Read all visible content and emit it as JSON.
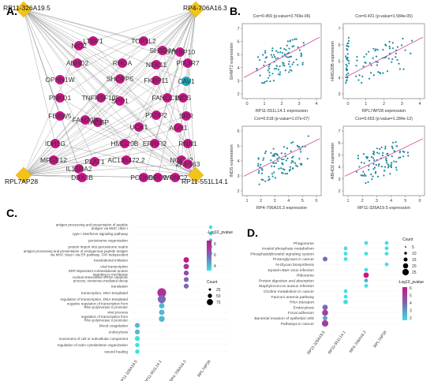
{
  "panels": {
    "a": "A.",
    "b": "B.",
    "c": "C.",
    "d": "D."
  },
  "network": {
    "hubs": [
      {
        "id": "h1",
        "label": "RP11-326A19.5"
      },
      {
        "id": "h2",
        "label": "RP4-706A16.3"
      },
      {
        "id": "h3",
        "label": "RPL7AP28"
      },
      {
        "id": "h4",
        "label": "RP11-551L14.1"
      }
    ],
    "genes": [
      "NID2",
      "LTBP1",
      "TOP1L2",
      "SH3D4A",
      "GTPBP10",
      "ABHD2",
      "RHOA",
      "NEK11",
      "PIK3R7",
      "OPHN1W",
      "SHOPP5",
      "FKBP11",
      "CAV1",
      "PNKD1",
      "TNFRSF10D",
      "SPP1",
      "FANCC1B",
      "INDS",
      "FBXW5",
      "TAOBP",
      "SRR",
      "FAM20B",
      "PXDP2",
      "UCK1",
      "AGH1",
      "IDH1G",
      "HMG20B",
      "ERRFI2",
      "RNN1",
      "MFGE12",
      "IL15RA2",
      "AC136472.2",
      "PLAT1",
      "NOCK2",
      "DBX3B",
      "PCDH10",
      "WRNC2",
      "DRD2",
      "ZNF563"
    ],
    "hub_color": "#f2c318",
    "gene_color": "#c71585",
    "teal_color": "#1aa7b5"
  },
  "scatter": [
    {
      "title": "Cor=0.459 (p-value=3.769e-06)",
      "xlabel": "RP11-551L14.1 expression",
      "ylabel": "EHMT2 expression",
      "xticks": [
        "0",
        "1",
        "2",
        "3",
        "4"
      ],
      "yticks": [
        "2",
        "3",
        "4",
        "5",
        "6",
        "7"
      ]
    },
    {
      "title": "Cor=0.431 (p-value=1.584e-05)",
      "xlabel": "RPL7AP28 expression",
      "ylabel": "HMG20B expression",
      "xticks": [
        "0",
        "1",
        "2",
        "3",
        "4"
      ],
      "yticks": [
        "3",
        "4",
        "5",
        "6",
        "7"
      ]
    },
    {
      "title": "Cor=0.518 (p-value=1.07e-07)",
      "xlabel": "RP4-706A16.3 expression",
      "ylabel": "INDS expression",
      "xticks": [
        "1",
        "2",
        "3",
        "4",
        "5",
        "6"
      ],
      "yticks": [
        "2",
        "3",
        "4",
        "5",
        "6"
      ]
    },
    {
      "title": "Cor=0.653 (p-value=1.284e-12)",
      "xlabel": "RP11-326A19.5 expression",
      "ylabel": "ABHD2 expression",
      "xticks": [
        "1",
        "2",
        "3",
        "4",
        "5",
        "6"
      ],
      "yticks": [
        "2",
        "3",
        "4",
        "5",
        "6",
        "7"
      ]
    }
  ],
  "go_plot": {
    "terms": [
      "antigen processing and presentation of peptide antigen via MHC class I",
      "type I interferon signaling pathway",
      "peroxisome organization",
      "protein import into peroxisome matrix",
      "antigen processing and presentation of endogenous peptide antigen via MHC class I via ER pathway, TAP-independent",
      "translational initiation",
      "viral transcription",
      "SRP-dependent cotranslational protein targeting to membrane",
      "nuclear-transcribed mRNA catabolic process, nonsense-mediated decay",
      "translation",
      "transcription, DNA-templated",
      "regulation of transcription, DNA-templated",
      "negative regulation of transcription from RNA polymerase II promoter",
      "viral process",
      "regulation of transcription from RNA polymerase II promoter",
      "blood coagulation",
      "endocytosis",
      "movement of cell or subcellular component",
      "regulation of actin cytoskeleton organization",
      "wound healing"
    ],
    "columns": [
      "RP11-326A19.5",
      "RP11-551L14.1",
      "RP4-706A16.3",
      "RPL7AP28"
    ],
    "legend_color_title": "-Log10_pvalue",
    "legend_color_ticks": [
      "4",
      "6",
      "8"
    ],
    "legend_size_title": "Count",
    "legend_size_ticks": [
      "25",
      "50",
      "75"
    ],
    "dots": [
      {
        "term": 0,
        "col": 3,
        "count": 5,
        "p": 2
      },
      {
        "term": 1,
        "col": 3,
        "count": 5,
        "p": 2
      },
      {
        "term": 2,
        "col": 3,
        "count": 5,
        "p": 3
      },
      {
        "term": 3,
        "col": 3,
        "count": 5,
        "p": 2
      },
      {
        "term": 4,
        "col": 3,
        "count": 5,
        "p": 2
      },
      {
        "term": 5,
        "col": 2,
        "count": 20,
        "p": 8
      },
      {
        "term": 6,
        "col": 2,
        "count": 20,
        "p": 7
      },
      {
        "term": 7,
        "col": 2,
        "count": 15,
        "p": 6
      },
      {
        "term": 8,
        "col": 2,
        "count": 15,
        "p": 5
      },
      {
        "term": 9,
        "col": 2,
        "count": 15,
        "p": 5
      },
      {
        "term": 10,
        "col": 1,
        "count": 70,
        "p": 7
      },
      {
        "term": 11,
        "col": 1,
        "count": 55,
        "p": 5
      },
      {
        "term": 12,
        "col": 1,
        "count": 20,
        "p": 3
      },
      {
        "term": 13,
        "col": 1,
        "count": 20,
        "p": 3
      },
      {
        "term": 14,
        "col": 1,
        "count": 25,
        "p": 3
      },
      {
        "term": 15,
        "col": 0,
        "count": 15,
        "p": 3
      },
      {
        "term": 16,
        "col": 0,
        "count": 15,
        "p": 3
      },
      {
        "term": 17,
        "col": 0,
        "count": 15,
        "p": 2
      },
      {
        "term": 18,
        "col": 0,
        "count": 10,
        "p": 2
      },
      {
        "term": 19,
        "col": 0,
        "count": 10,
        "p": 2
      }
    ]
  },
  "kegg_plot": {
    "terms": [
      "Phagosome",
      "Inositol phosphate metabolism",
      "Phosphatidylinositol signaling system",
      "Proteoglycans in cancer",
      "N-Glycan biosynthesis",
      "Epstein-Barr virus infection",
      "Ribosome",
      "Protein digestion and absorption",
      "Staphylococcus aureus infection",
      "Choline metabolism in cancer",
      "Fanconi anemia pathway",
      "RNA transport",
      "Endocytosis",
      "Focal adhesion",
      "Bacterial invasion of epithelial cells",
      "Pathways in cancer"
    ],
    "columns": [
      "RP11-326A19.5",
      "RP11-551L14.1",
      "RP4-706A16.3",
      "RPL7AP28"
    ],
    "legend_size_title": "Count",
    "legend_size_ticks": [
      "5",
      "10",
      "15",
      "20",
      "25"
    ],
    "legend_color_title": "-Log10_pvalue",
    "legend_color_ticks": [
      "2",
      "3",
      "4",
      "5",
      "6"
    ],
    "dots": [
      {
        "term": 0,
        "col": 2,
        "count": 5,
        "p": 2
      },
      {
        "term": 0,
        "col": 3,
        "count": 5,
        "p": 2
      },
      {
        "term": 1,
        "col": 1,
        "count": 5,
        "p": 2
      },
      {
        "term": 1,
        "col": 3,
        "count": 5,
        "p": 2
      },
      {
        "term": 2,
        "col": 1,
        "count": 5,
        "p": 2
      },
      {
        "term": 2,
        "col": 2,
        "count": 5,
        "p": 2
      },
      {
        "term": 2,
        "col": 3,
        "count": 5,
        "p": 2
      },
      {
        "term": 3,
        "col": 0,
        "count": 10,
        "p": 4
      },
      {
        "term": 3,
        "col": 1,
        "count": 5,
        "p": 2
      },
      {
        "term": 4,
        "col": 3,
        "count": 5,
        "p": 2
      },
      {
        "term": 5,
        "col": 2,
        "count": 5,
        "p": 2
      },
      {
        "term": 6,
        "col": 2,
        "count": 15,
        "p": 6
      },
      {
        "term": 7,
        "col": 2,
        "count": 5,
        "p": 3
      },
      {
        "term": 8,
        "col": 2,
        "count": 5,
        "p": 2
      },
      {
        "term": 9,
        "col": 1,
        "count": 5,
        "p": 2
      },
      {
        "term": 10,
        "col": 1,
        "count": 5,
        "p": 2
      },
      {
        "term": 11,
        "col": 1,
        "count": 10,
        "p": 2
      },
      {
        "term": 12,
        "col": 0,
        "count": 15,
        "p": 4
      },
      {
        "term": 13,
        "col": 0,
        "count": 20,
        "p": 5
      },
      {
        "term": 14,
        "col": 0,
        "count": 10,
        "p": 3
      },
      {
        "term": 15,
        "col": 0,
        "count": 25,
        "p": 5
      }
    ]
  }
}
